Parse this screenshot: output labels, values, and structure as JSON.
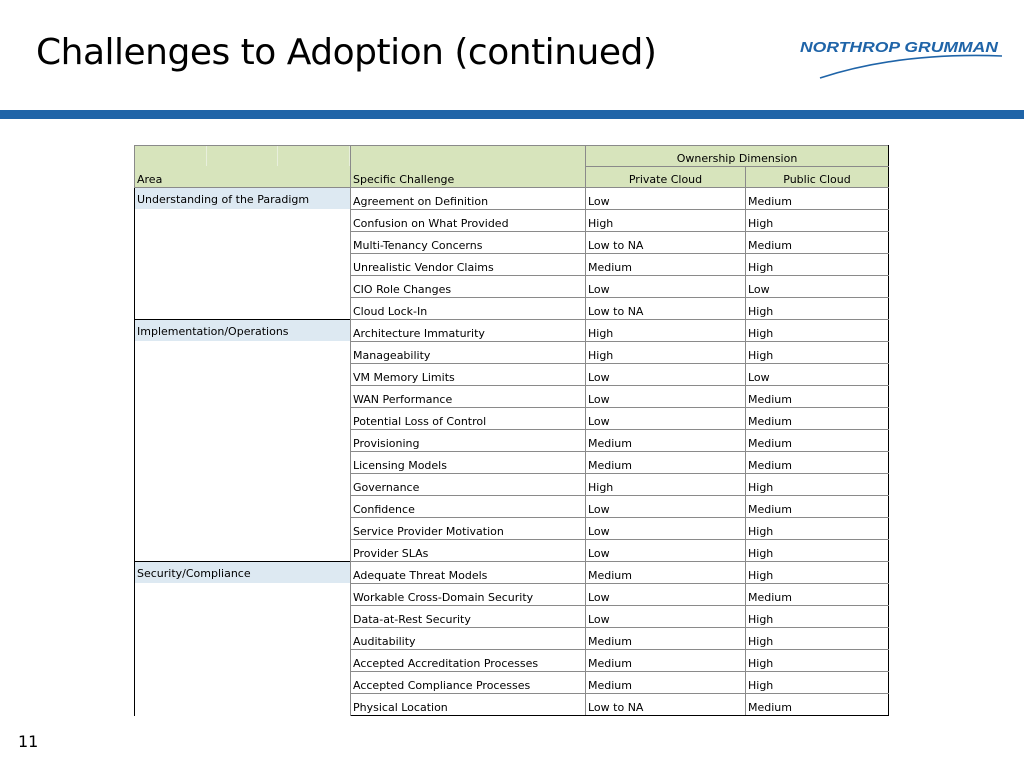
{
  "slide": {
    "title": "Challenges to Adoption (continued)",
    "page_number": "11",
    "logo_text": "NORTHROP GRUMMAN"
  },
  "table": {
    "headers": {
      "group": "Ownership Dimension",
      "area": "Area",
      "challenge": "Specific Challenge",
      "private": "Private Cloud",
      "public": "Public Cloud"
    },
    "groups": [
      {
        "area": "Understanding of the Paradigm",
        "rows": [
          {
            "challenge": "Agreement on Definition",
            "private": "Low",
            "public": "Medium"
          },
          {
            "challenge": "Confusion on What Provided",
            "private": "High",
            "public": "High"
          },
          {
            "challenge": "Multi-Tenancy Concerns",
            "private": "Low to NA",
            "public": "Medium"
          },
          {
            "challenge": "Unrealistic Vendor Claims",
            "private": "Medium",
            "public": "High"
          },
          {
            "challenge": "CIO Role Changes",
            "private": "Low",
            "public": "Low"
          },
          {
            "challenge": "Cloud Lock-In",
            "private": "Low to NA",
            "public": "High"
          }
        ]
      },
      {
        "area": "Implementation/Operations",
        "rows": [
          {
            "challenge": "Architecture Immaturity",
            "private": "High",
            "public": "High"
          },
          {
            "challenge": "Manageability",
            "private": "High",
            "public": "High"
          },
          {
            "challenge": "VM Memory Limits",
            "private": "Low",
            "public": "Low"
          },
          {
            "challenge": "WAN Performance",
            "private": "Low",
            "public": "Medium"
          },
          {
            "challenge": "Potential Loss of Control",
            "private": "Low",
            "public": "Medium"
          },
          {
            "challenge": "Provisioning",
            "private": "Medium",
            "public": "Medium"
          },
          {
            "challenge": "Licensing Models",
            "private": "Medium",
            "public": "Medium"
          },
          {
            "challenge": "Governance",
            "private": "High",
            "public": "High"
          },
          {
            "challenge": "Confidence",
            "private": "Low",
            "public": "Medium"
          },
          {
            "challenge": "Service Provider Motivation",
            "private": "Low",
            "public": "High"
          },
          {
            "challenge": "Provider SLAs",
            "private": "Low",
            "public": "High"
          }
        ]
      },
      {
        "area": "Security/Compliance",
        "rows": [
          {
            "challenge": "Adequate Threat Models",
            "private": "Medium",
            "public": "High"
          },
          {
            "challenge": "Workable Cross-Domain Security",
            "private": "Low",
            "public": "Medium"
          },
          {
            "challenge": "Data-at-Rest Security",
            "private": "Low",
            "public": "High"
          },
          {
            "challenge": "Auditability",
            "private": "Medium",
            "public": "High"
          },
          {
            "challenge": "Accepted Accreditation Processes",
            "private": "Medium",
            "public": "High"
          },
          {
            "challenge": "Accepted Compliance Processes",
            "private": "Medium",
            "public": "High"
          },
          {
            "challenge": "Physical Location",
            "private": "Low to NA",
            "public": "Medium"
          }
        ]
      }
    ]
  },
  "colors": {
    "header_fill": "#d7e4bc",
    "area_fill": "#dde9f2",
    "rule": "#1f64a8",
    "logo": "#1f64a8"
  }
}
